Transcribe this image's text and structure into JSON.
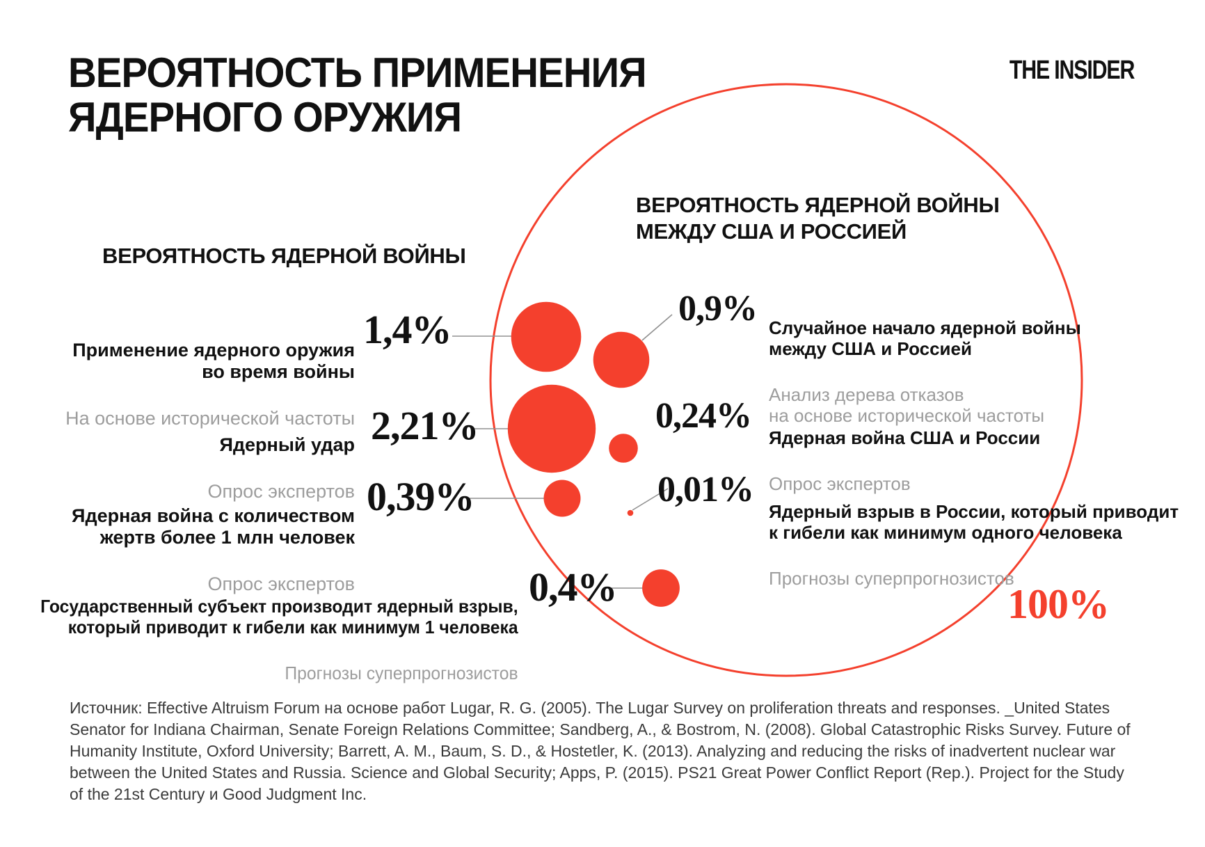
{
  "meta": {
    "brand": "THE INSIDER",
    "accent_red": "#F4402D",
    "gray": "#9D9D9D",
    "leader_gray": "#909090"
  },
  "title": "ВЕРОЯТНОСТЬ ПРИМЕНЕНИЯ\nЯДЕРНОГО ОРУЖИЯ",
  "left_section": {
    "header": "ВЕРОЯТНОСТЬ ЯДЕРНОЙ ВОЙНЫ",
    "items": [
      {
        "label": "Применение ядерного оружия\nво время войны",
        "method": "На основе исторической частоты",
        "value": "1,4%"
      },
      {
        "label": "Ядерный удар",
        "method": "Опрос экспертов",
        "value": "2,21%"
      },
      {
        "label": "Ядерная война с количеством\nжертв более 1 млн человек",
        "method": "Опрос экспертов",
        "value": "0,39%"
      },
      {
        "label": "Государственный субъект производит ядерный взрыв,\nкоторый приводит к гибели как минимум 1 человека",
        "method": "Прогнозы суперпрогнозистов",
        "value": "0,4%"
      }
    ]
  },
  "right_section": {
    "header": "ВЕРОЯТНОСТЬ ЯДЕРНОЙ ВОЙНЫ\nМЕЖДУ США И РОССИЕЙ",
    "items": [
      {
        "value": "0,9%",
        "label": "Случайное начало ядерной войны\nмежду США и Россией",
        "method": "Анализ дерева отказов\nна основе исторической частоты"
      },
      {
        "value": "0,24%",
        "label": "Ядерная война США и России",
        "method": "Опрос экспертов"
      },
      {
        "value": "0,01%",
        "label": "Ядерный взрыв в России, который приводит\nк гибели как минимум одного человека",
        "method": "Прогнозы суперпрогнозистов"
      }
    ],
    "total_label": "100%"
  },
  "footer": {
    "source": "Источник: Effective Altruism Forum на основе работ Lugar, R. G. (2005). The Lugar Survey on proliferation threats and responses. _United States Senator for Indiana Chairman, Senate Foreign Relations Committee; Sandberg, A., & Bostrom, N. (2008). Global Catastrophic Risks Survey. Future of Humanity Institute, Oxford University; Barrett, A. M., Baum, S. D., & Hostetler, K. (2013). Analyzing and reducing the risks of inadvertent nuclear war between the United States and Russia. Science and Global Security; Apps, P. (2015). PS21 Great Power Conflict Report (Rep.). Project for the Study of the 21st Century и Good Judgment Inc."
  },
  "chart_data": {
    "type": "bubble",
    "title": "ВЕРОЯТНОСТЬ ПРИМЕНЕНИЯ ЯДЕРНОГО ОРУЖИЯ",
    "unit": "probability, %",
    "encoding": "circle area proportional to probability; outer circle = 100%",
    "outer_circle": {
      "label": "100%",
      "value": 100
    },
    "points": [
      {
        "group": "ВЕРОЯТНОСТЬ ЯДЕРНОЙ ВОЙНЫ",
        "label": "Применение ядерного оружия во время войны",
        "method": "На основе исторической частоты",
        "value": 1.4
      },
      {
        "group": "ВЕРОЯТНОСТЬ ЯДЕРНОЙ ВОЙНЫ",
        "label": "Ядерный удар",
        "method": "Опрос экспертов",
        "value": 2.21
      },
      {
        "group": "ВЕРОЯТНОСТЬ ЯДЕРНОЙ ВОЙНЫ",
        "label": "Ядерная война с количеством жертв более 1 млн человек",
        "method": "Опрос экспертов",
        "value": 0.39
      },
      {
        "group": "ВЕРОЯТНОСТЬ ЯДЕРНОЙ ВОЙНЫ",
        "label": "Государственный субъект производит ядерный взрыв, который приводит к гибели как минимум 1 человека",
        "method": "Прогнозы суперпрогнозистов",
        "value": 0.4
      },
      {
        "group": "ВЕРОЯТНОСТЬ ЯДЕРНОЙ ВОЙНЫ МЕЖДУ США И РОССИЕЙ",
        "label": "Случайное начало ядерной войны между США и Россией",
        "method": "Анализ дерева отказов на основе исторической частоты",
        "value": 0.9
      },
      {
        "group": "ВЕРОЯТНОСТЬ ЯДЕРНОЙ ВОЙНЫ МЕЖДУ США И РОССИЕЙ",
        "label": "Ядерная война США и России",
        "method": "Опрос экспертов",
        "value": 0.24
      },
      {
        "group": "ВЕРОЯТНОСТЬ ЯДЕРНОЙ ВОЙНЫ МЕЖДУ США И РОССИЕЙ",
        "label": "Ядерный взрыв в России, который приводит к гибели как минимум одного человека",
        "method": "Прогнозы суперпрогнозистов",
        "value": 0.01
      }
    ]
  }
}
